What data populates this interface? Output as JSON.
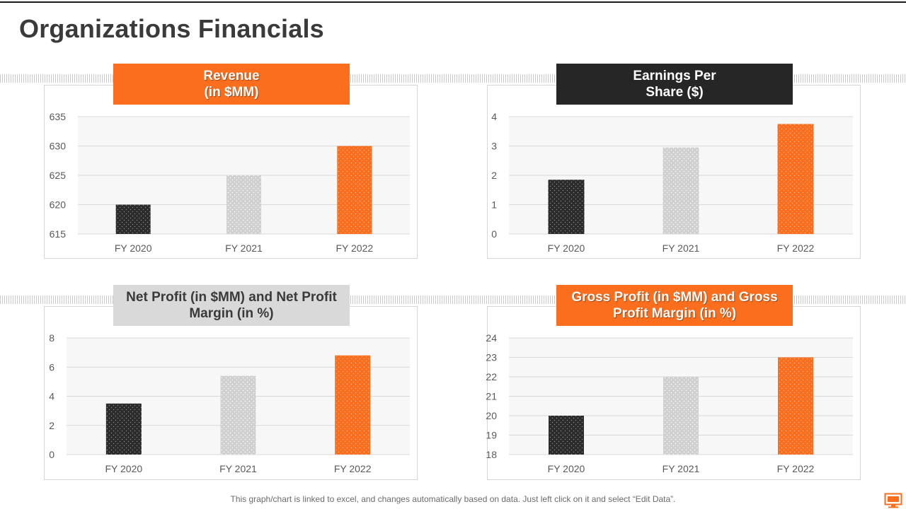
{
  "page": {
    "title": "Organizations Financials",
    "footer_note": "This graph/chart is linked to excel, and changes automatically based on data. Just left click on it and select “Edit Data”."
  },
  "colors": {
    "accent_orange": "#fa6e1e",
    "dark": "#262626",
    "light_gray": "#d9d9d9",
    "bar_dark": "#2b2b2b",
    "bar_light": "#d0d0d0",
    "bar_orange": "#fa6e1e"
  },
  "icons": {
    "corner": "monitor-icon"
  },
  "chart_data": [
    {
      "id": "revenue",
      "type": "bar",
      "title": "Revenue\n(in $MM)",
      "categories": [
        "FY 2020",
        "FY 2021",
        "FY 2022"
      ],
      "values": [
        620,
        625,
        630
      ],
      "ylim": [
        615,
        635
      ],
      "yticks": [
        615,
        620,
        625,
        630,
        635
      ],
      "grid": true,
      "legend": "none"
    },
    {
      "id": "eps",
      "type": "bar",
      "title": "Earnings Per\nShare ($)",
      "categories": [
        "FY 2020",
        "FY 2021",
        "FY 2022"
      ],
      "values": [
        1.85,
        2.95,
        3.75
      ],
      "ylim": [
        0,
        4
      ],
      "yticks": [
        0,
        1,
        2,
        3,
        4
      ],
      "grid": true,
      "legend": "none"
    },
    {
      "id": "net-profit",
      "type": "bar",
      "title": "Net Profit (in $MM) and Net Profit\nMargin (in %)",
      "categories": [
        "FY 2020",
        "FY 2021",
        "FY 2022"
      ],
      "values": [
        3.5,
        5.4,
        6.8
      ],
      "ylim": [
        0,
        8
      ],
      "yticks": [
        0,
        2,
        4,
        6,
        8
      ],
      "grid": true,
      "legend": "none"
    },
    {
      "id": "gross-profit",
      "type": "bar",
      "title": "Gross Profit (in $MM) and Gross\nProfit Margin (in %)",
      "categories": [
        "FY 2020",
        "FY 2021",
        "FY 2022"
      ],
      "values": [
        20,
        22,
        23
      ],
      "ylim": [
        18,
        24
      ],
      "yticks": [
        18,
        19,
        20,
        21,
        22,
        23,
        24
      ],
      "grid": true,
      "legend": "none"
    }
  ]
}
